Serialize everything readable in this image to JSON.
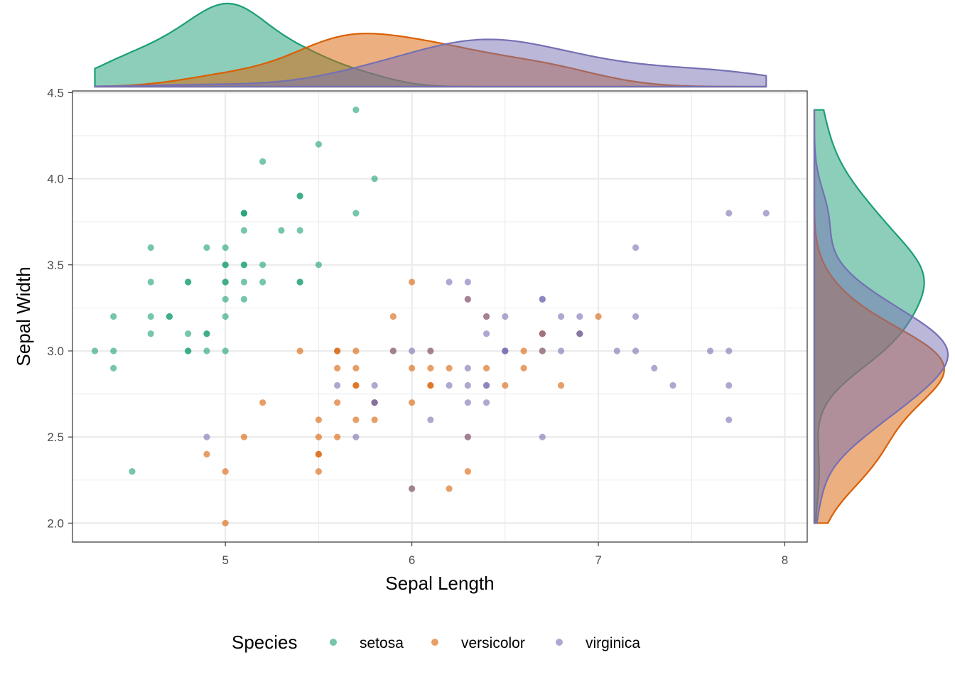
{
  "chart_data": {
    "type": "scatter",
    "title": "",
    "xlabel": "Sepal Length",
    "ylabel": "Sepal Width",
    "xlim": [
      4.18,
      8.12
    ],
    "ylim": [
      1.89,
      4.51
    ],
    "x_ticks": [
      5,
      6,
      7,
      8
    ],
    "y_ticks": [
      "2.0",
      "2.5",
      "3.0",
      "3.5",
      "4.0",
      "4.5"
    ],
    "grid": true,
    "legend": {
      "title": "Species",
      "position": "bottom"
    },
    "marginal": {
      "top": "density",
      "right": "density"
    },
    "series": [
      {
        "name": "setosa",
        "color": "#1b9e77",
        "x": [
          5.1,
          4.9,
          4.7,
          4.6,
          5.0,
          5.4,
          4.6,
          5.0,
          4.4,
          4.9,
          5.4,
          4.8,
          4.8,
          4.3,
          5.8,
          5.7,
          5.4,
          5.1,
          5.7,
          5.1,
          5.4,
          5.1,
          4.6,
          5.1,
          4.8,
          5.0,
          5.0,
          5.2,
          5.2,
          4.7,
          4.8,
          5.4,
          5.2,
          5.5,
          4.9,
          5.0,
          5.5,
          4.9,
          4.4,
          5.1,
          5.0,
          4.5,
          4.4,
          5.0,
          5.1,
          4.8,
          5.1,
          4.6,
          5.3,
          5.0
        ],
        "y": [
          3.5,
          3.0,
          3.2,
          3.1,
          3.6,
          3.9,
          3.4,
          3.4,
          2.9,
          3.1,
          3.7,
          3.4,
          3.0,
          3.0,
          4.0,
          4.4,
          3.9,
          3.5,
          3.8,
          3.8,
          3.4,
          3.7,
          3.6,
          3.3,
          3.4,
          3.0,
          3.4,
          3.5,
          3.4,
          3.2,
          3.1,
          3.4,
          4.1,
          4.2,
          3.1,
          3.2,
          3.5,
          3.6,
          3.0,
          3.4,
          3.5,
          2.3,
          3.2,
          3.5,
          3.8,
          3.0,
          3.8,
          3.2,
          3.7,
          3.3
        ]
      },
      {
        "name": "versicolor",
        "color": "#d95f02",
        "x": [
          7.0,
          6.4,
          6.9,
          5.5,
          6.5,
          5.7,
          6.3,
          4.9,
          6.6,
          5.2,
          5.0,
          5.9,
          6.0,
          6.1,
          5.6,
          6.7,
          5.6,
          5.8,
          6.2,
          5.6,
          5.9,
          6.1,
          6.3,
          6.1,
          6.4,
          6.6,
          6.8,
          6.7,
          6.0,
          5.7,
          5.5,
          5.5,
          5.8,
          6.0,
          5.4,
          6.0,
          6.7,
          6.3,
          5.6,
          5.5,
          5.5,
          6.1,
          5.8,
          5.0,
          5.6,
          5.7,
          5.7,
          6.2,
          5.1,
          5.7
        ],
        "y": [
          3.2,
          3.2,
          3.1,
          2.3,
          2.8,
          2.8,
          3.3,
          2.4,
          2.9,
          2.7,
          2.0,
          3.0,
          2.2,
          2.9,
          2.9,
          3.1,
          3.0,
          2.7,
          2.2,
          2.5,
          3.2,
          2.8,
          2.5,
          2.8,
          2.9,
          3.0,
          2.8,
          3.0,
          2.9,
          2.6,
          2.4,
          2.4,
          2.7,
          2.7,
          3.0,
          3.4,
          3.1,
          2.3,
          3.0,
          2.5,
          2.6,
          3.0,
          2.6,
          2.3,
          2.7,
          3.0,
          2.9,
          2.9,
          2.5,
          2.8
        ]
      },
      {
        "name": "virginica",
        "color": "#7570b3",
        "x": [
          6.3,
          5.8,
          7.1,
          6.3,
          6.5,
          7.6,
          4.9,
          7.3,
          6.7,
          7.2,
          6.5,
          6.4,
          6.8,
          5.7,
          5.8,
          6.4,
          6.5,
          7.7,
          7.7,
          6.0,
          6.9,
          5.6,
          7.7,
          6.3,
          6.7,
          7.2,
          6.2,
          6.1,
          6.4,
          7.2,
          7.4,
          7.9,
          6.4,
          6.3,
          6.1,
          7.7,
          6.3,
          6.4,
          6.0,
          6.9,
          6.7,
          6.9,
          5.8,
          6.8,
          6.7,
          6.7,
          6.3,
          6.5,
          6.2,
          5.9
        ],
        "y": [
          3.3,
          2.7,
          3.0,
          2.9,
          3.0,
          3.0,
          2.5,
          2.9,
          2.5,
          3.6,
          3.2,
          2.7,
          3.0,
          2.5,
          2.8,
          3.2,
          3.0,
          3.8,
          2.6,
          2.2,
          3.2,
          2.8,
          2.8,
          2.7,
          3.3,
          3.2,
          2.8,
          3.0,
          2.8,
          3.0,
          2.8,
          3.8,
          2.8,
          2.8,
          2.6,
          3.0,
          3.4,
          3.1,
          3.0,
          3.1,
          3.1,
          3.1,
          2.7,
          3.2,
          3.3,
          3.0,
          2.5,
          3.0,
          3.4,
          3.0
        ]
      }
    ]
  }
}
